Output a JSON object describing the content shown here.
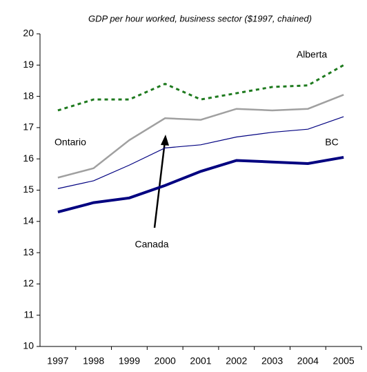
{
  "chart_data": {
    "type": "line",
    "title": "GDP per hour worked, business sector ($1997, chained)",
    "categories": [
      "1997",
      "1998",
      "1999",
      "2000",
      "2001",
      "2002",
      "2003",
      "2004",
      "2005"
    ],
    "series": [
      {
        "name": "Alberta",
        "color": "#1e7a1e",
        "dash": true,
        "width": 3,
        "values": [
          17.55,
          17.9,
          17.9,
          18.4,
          17.9,
          18.1,
          18.3,
          18.35,
          19.0
        ]
      },
      {
        "name": "Ontario",
        "color": "#a0a0a0",
        "dash": false,
        "width": 2.5,
        "values": [
          15.4,
          15.7,
          16.6,
          17.3,
          17.25,
          17.6,
          17.55,
          17.6,
          18.05
        ]
      },
      {
        "name": "Canada",
        "color": "#000080",
        "dash": false,
        "width": 1.2,
        "values": [
          15.05,
          15.3,
          15.8,
          16.35,
          16.45,
          16.7,
          16.85,
          16.95,
          17.35
        ]
      },
      {
        "name": "BC",
        "color": "#000080",
        "dash": false,
        "width": 4,
        "values": [
          14.3,
          14.6,
          14.75,
          15.15,
          15.6,
          15.95,
          15.9,
          15.85,
          16.05
        ]
      }
    ],
    "ylim": [
      10,
      20
    ],
    "yticks": [
      10,
      11,
      12,
      13,
      14,
      15,
      16,
      17,
      18,
      19,
      20
    ],
    "grid": false
  }
}
